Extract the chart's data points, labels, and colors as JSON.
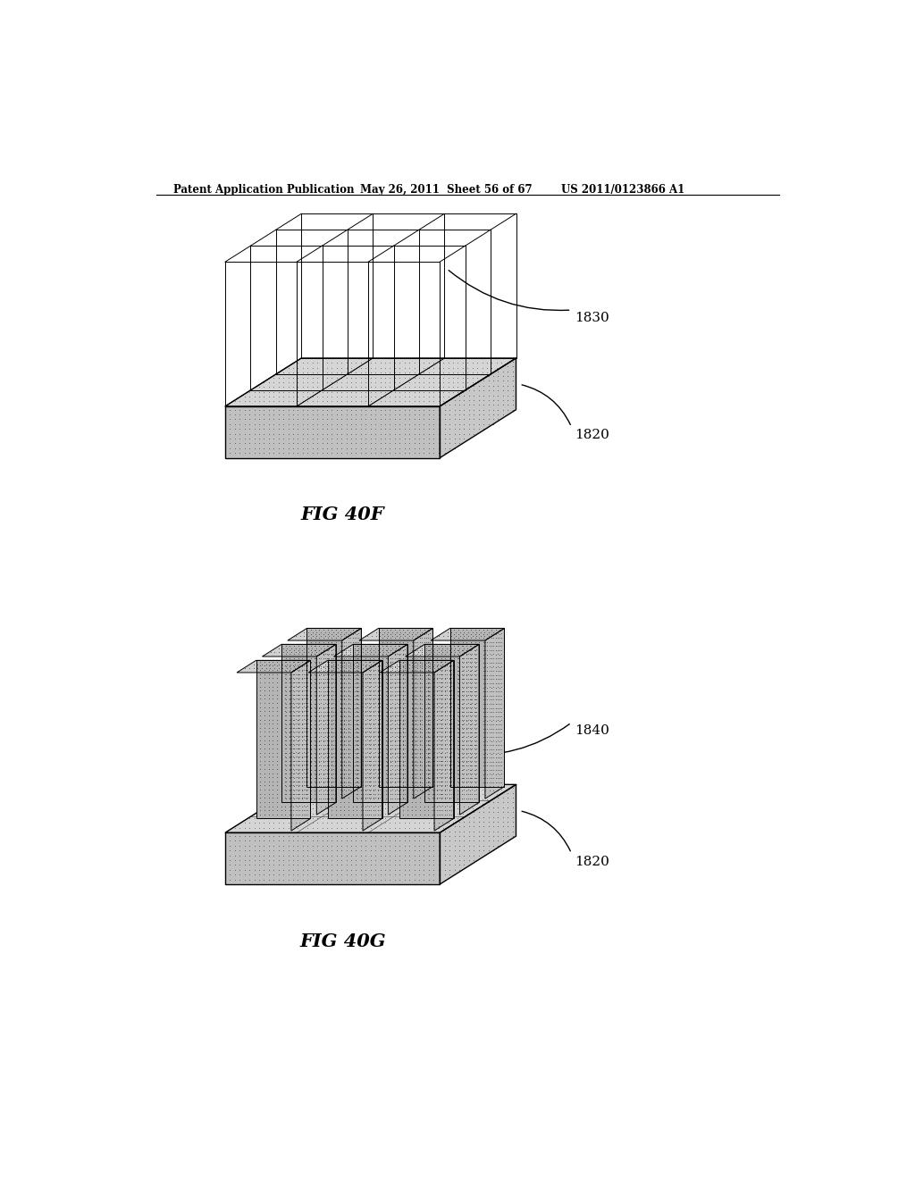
{
  "header_left": "Patent Application Publication",
  "header_mid": "May 26, 2011  Sheet 56 of 67",
  "header_right": "US 2011/0123866 A1",
  "fig_top_label": "FIG 40F",
  "fig_bot_label": "FIG 40G",
  "label_1830": "1830",
  "label_1820_top": "1820",
  "label_1840": "1840",
  "label_1820_bot": "1820",
  "bg_color": "#ffffff",
  "line_color": "#000000",
  "gray_light": "#c8c8c8",
  "gray_mid": "#a8a8a8",
  "gray_dark": "#888888"
}
